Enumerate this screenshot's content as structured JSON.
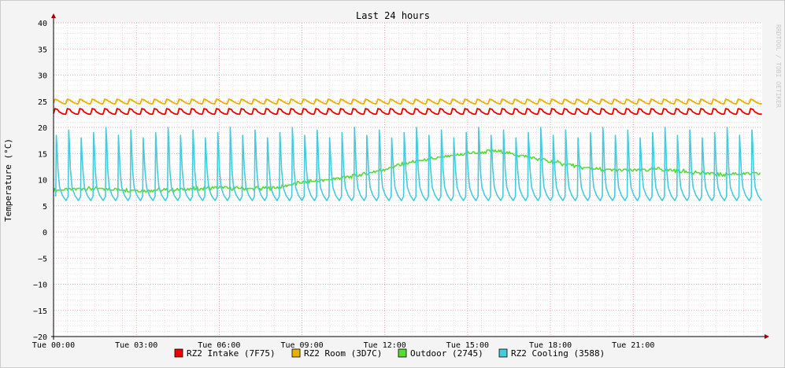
{
  "chart_data": {
    "type": "line",
    "title": "Last 24 hours",
    "ylabel": "Temperature (°C)",
    "xlabel": "",
    "watermark": "RRDTOOL / TOBI OETIKER",
    "ylim": [
      -20,
      40
    ],
    "y_ticks": [
      40,
      35,
      30,
      25,
      20,
      15,
      10,
      5,
      0,
      -5,
      -10,
      -15,
      -20
    ],
    "x_range_hours": [
      0,
      25.67
    ],
    "x_ticks": [
      {
        "label": "Tue 00:00",
        "hour": 0
      },
      {
        "label": "Tue 03:00",
        "hour": 3
      },
      {
        "label": "Tue 06:00",
        "hour": 6
      },
      {
        "label": "Tue 09:00",
        "hour": 9
      },
      {
        "label": "Tue 12:00",
        "hour": 12
      },
      {
        "label": "Tue 15:00",
        "hour": 15
      },
      {
        "label": "Tue 18:00",
        "hour": 18
      },
      {
        "label": "Tue 21:00",
        "hour": 21
      }
    ],
    "grid": true,
    "legend_position": "bottom",
    "series": [
      {
        "name": "RZ2 Intake (7F75)",
        "color": "#ee0000",
        "style": "sawtooth",
        "base": 22.5,
        "peak": 23.6,
        "period_hours": 0.45
      },
      {
        "name": "RZ2 Room (3D7C)",
        "color": "#e8b000",
        "style": "sawtooth",
        "base": 24.5,
        "peak": 25.4,
        "period_hours": 0.45
      },
      {
        "name": "Outdoor (2745)",
        "color": "#55dd33",
        "style": "smooth",
        "hours": [
          0,
          1,
          2,
          3,
          4,
          5,
          6,
          7,
          8,
          9,
          10,
          11,
          12,
          13,
          14,
          15,
          16,
          17,
          18,
          19,
          20,
          21,
          22,
          23,
          24,
          25.6
        ],
        "values": [
          8,
          8.3,
          8.2,
          8,
          8,
          8.2,
          8.5,
          8.3,
          8.4,
          9.5,
          10,
          10.8,
          12,
          13.4,
          14.2,
          15,
          15.5,
          14.5,
          13.5,
          12.5,
          11.8,
          11.8,
          12,
          11.5,
          11,
          11.2
        ]
      },
      {
        "name": "RZ2 Cooling (3588)",
        "color": "#44ccdd",
        "style": "spikes",
        "base": 6.0,
        "period_hours": 0.45,
        "peaks": [
          18.5,
          19.5,
          18,
          19,
          20
        ]
      }
    ]
  }
}
